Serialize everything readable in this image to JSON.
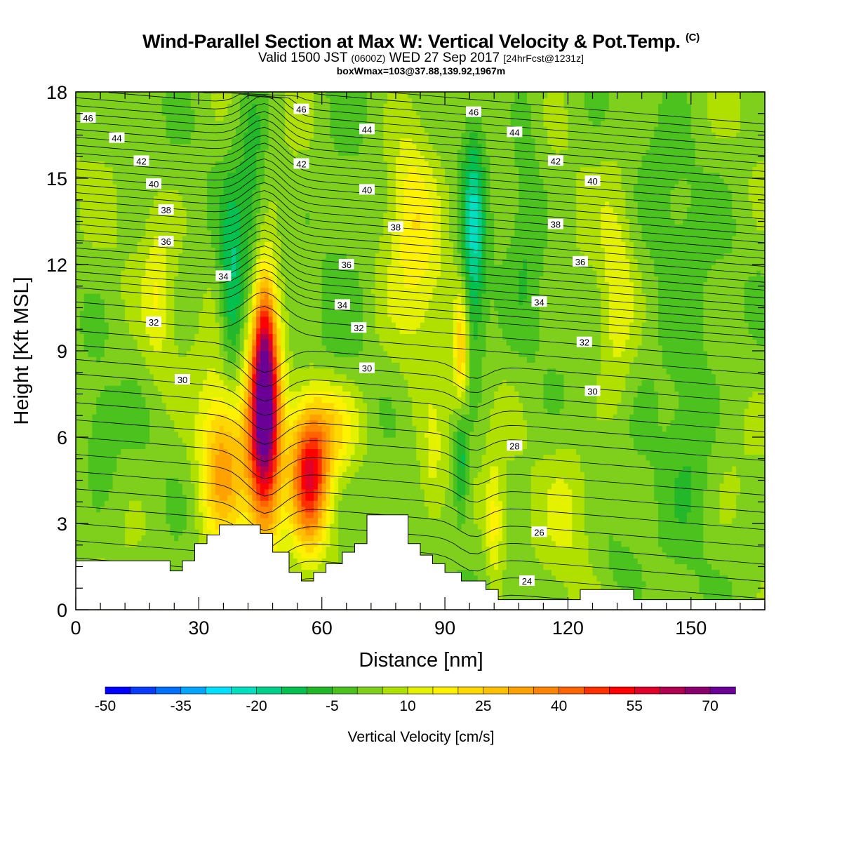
{
  "header": {
    "title": "Wind-Parallel Section at Max W: Vertical Velocity & Pot.Temp.",
    "copyright": "(C)",
    "valid_main": "Valid 1500 JST",
    "valid_utc": "(0600Z)",
    "valid_date": "WED 27 Sep 2017",
    "forecast": "[24hrFcst@1231z]",
    "boxinfo": "boxWmax=103@37.88,139.92,1967m"
  },
  "chart_data": {
    "type": "heatmap",
    "xlabel": "Distance [nm]",
    "ylabel": "Height [Kft MSL]",
    "xlim": [
      0,
      168
    ],
    "ylim": [
      0,
      18
    ],
    "xticks": [
      0,
      30,
      60,
      90,
      120,
      150
    ],
    "yticks": [
      0,
      3,
      6,
      9,
      12,
      15,
      18
    ],
    "colorbar": {
      "label": "Vertical Velocity [cm/s]",
      "tick_labels": [
        "-50",
        "-35",
        "-20",
        "-5",
        "10",
        "25",
        "40",
        "55",
        "70"
      ],
      "min": -50,
      "max": 75,
      "step": 5,
      "colors": [
        "#0000ff",
        "#0a3cff",
        "#0070ff",
        "#00a5ff",
        "#00e0ff",
        "#00e0c0",
        "#00d08a",
        "#00c050",
        "#22b82a",
        "#4cc21e",
        "#7fd01c",
        "#b0e000",
        "#e4f200",
        "#fff200",
        "#ffd800",
        "#ffc000",
        "#ffa200",
        "#ff8400",
        "#ff6400",
        "#ff3000",
        "#ff0000",
        "#e0002a",
        "#b20050",
        "#8a0070",
        "#6a0096"
      ]
    },
    "field": {
      "background": 3,
      "features": [
        {
          "x": 46,
          "z": 6.1,
          "sx": 2.8,
          "sz": 2.6,
          "a": 62
        },
        {
          "x": 46,
          "z": 9.4,
          "sx": 2.1,
          "sz": 2.0,
          "a": 38
        },
        {
          "x": 57,
          "z": 4.5,
          "sx": 3.2,
          "sz": 1.6,
          "a": 46
        },
        {
          "x": 62,
          "z": 6.3,
          "sx": 5.5,
          "sz": 1.3,
          "a": 22
        },
        {
          "x": 36,
          "z": 5.0,
          "sx": 4.0,
          "sz": 2.1,
          "a": 30
        },
        {
          "x": 38,
          "z": 11.0,
          "sx": 2.0,
          "sz": 2.5,
          "a": -18
        },
        {
          "x": 43,
          "z": 15.0,
          "sx": 2.5,
          "sz": 3.5,
          "a": -10
        },
        {
          "x": 65,
          "z": 12.0,
          "sx": 5.0,
          "sz": 6.0,
          "a": -5
        },
        {
          "x": 84,
          "z": 12.5,
          "sx": 5.0,
          "sz": 2.5,
          "a": 12
        },
        {
          "x": 81,
          "z": 15.0,
          "sx": 3.5,
          "sz": 2.0,
          "a": 8
        },
        {
          "x": 97,
          "z": 13.0,
          "sx": 2.0,
          "sz": 3.0,
          "a": -22
        },
        {
          "x": 94,
          "z": 9.0,
          "sx": 1.2,
          "sz": 1.5,
          "a": 22
        },
        {
          "x": 94,
          "z": 5.2,
          "sx": 1.2,
          "sz": 1.4,
          "a": -16
        },
        {
          "x": 102,
          "z": 3.0,
          "sx": 1.5,
          "sz": 1.5,
          "a": 14
        },
        {
          "x": 87,
          "z": 4.5,
          "sx": 2.5,
          "sz": 1.5,
          "a": 10
        },
        {
          "x": 20,
          "z": 11.0,
          "sx": 2.5,
          "sz": 2.0,
          "a": 10
        },
        {
          "x": 110,
          "z": 14.0,
          "sx": 3.0,
          "sz": 3.0,
          "a": -8
        },
        {
          "x": 132,
          "z": 11.0,
          "sx": 3.0,
          "sz": 3.0,
          "a": 10
        },
        {
          "x": 145,
          "z": 11.0,
          "sx": 7.0,
          "sz": 4.0,
          "a": -5
        },
        {
          "x": 150,
          "z": 6.0,
          "sx": 4.0,
          "sz": 2.5,
          "a": -7
        },
        {
          "x": 6,
          "z": 6.0,
          "sx": 3.0,
          "sz": 1.5,
          "a": -6
        },
        {
          "x": 132,
          "z": 1.5,
          "sx": 4.0,
          "sz": 1.0,
          "a": -5
        },
        {
          "x": 120,
          "z": 3.5,
          "sx": 4.0,
          "sz": 1.8,
          "a": 6
        }
      ]
    },
    "theta_labels": [
      {
        "text": "46",
        "x": 3,
        "z": 17.1
      },
      {
        "text": "44",
        "x": 10,
        "z": 16.4
      },
      {
        "text": "42",
        "x": 16,
        "z": 15.6
      },
      {
        "text": "40",
        "x": 19,
        "z": 14.8
      },
      {
        "text": "38",
        "x": 22,
        "z": 13.9
      },
      {
        "text": "36",
        "x": 22,
        "z": 12.8
      },
      {
        "text": "34",
        "x": 36,
        "z": 11.6
      },
      {
        "text": "32",
        "x": 19,
        "z": 10.0
      },
      {
        "text": "30",
        "x": 26,
        "z": 8.0
      },
      {
        "text": "46",
        "x": 55,
        "z": 17.4
      },
      {
        "text": "44",
        "x": 71,
        "z": 16.7
      },
      {
        "text": "42",
        "x": 55,
        "z": 15.5
      },
      {
        "text": "40",
        "x": 71,
        "z": 14.6
      },
      {
        "text": "38",
        "x": 78,
        "z": 13.3
      },
      {
        "text": "36",
        "x": 66,
        "z": 12.0
      },
      {
        "text": "34",
        "x": 65,
        "z": 10.6
      },
      {
        "text": "32",
        "x": 69,
        "z": 9.8
      },
      {
        "text": "30",
        "x": 71,
        "z": 8.4
      },
      {
        "text": "46",
        "x": 97,
        "z": 17.3
      },
      {
        "text": "44",
        "x": 107,
        "z": 16.6
      },
      {
        "text": "42",
        "x": 117,
        "z": 15.6
      },
      {
        "text": "40",
        "x": 126,
        "z": 14.9
      },
      {
        "text": "38",
        "x": 117,
        "z": 13.4
      },
      {
        "text": "36",
        "x": 123,
        "z": 12.1
      },
      {
        "text": "34",
        "x": 113,
        "z": 10.7
      },
      {
        "text": "32",
        "x": 124,
        "z": 9.3
      },
      {
        "text": "30",
        "x": 126,
        "z": 7.6
      },
      {
        "text": "28",
        "x": 107,
        "z": 5.7
      },
      {
        "text": "26",
        "x": 113,
        "z": 2.7
      },
      {
        "text": "24",
        "x": 110,
        "z": 1.0
      }
    ],
    "terrain": [
      [
        0,
        1.7
      ],
      [
        23,
        1.7
      ],
      [
        23,
        1.35
      ],
      [
        26,
        1.35
      ],
      [
        26,
        1.7
      ],
      [
        29,
        1.7
      ],
      [
        29,
        2.3
      ],
      [
        32,
        2.3
      ],
      [
        32,
        2.6
      ],
      [
        35,
        2.6
      ],
      [
        35,
        2.95
      ],
      [
        45,
        2.95
      ],
      [
        45,
        2.65
      ],
      [
        48,
        2.65
      ],
      [
        48,
        2.0
      ],
      [
        52,
        2.0
      ],
      [
        52,
        1.3
      ],
      [
        55,
        1.3
      ],
      [
        55,
        1.0
      ],
      [
        58,
        1.0
      ],
      [
        58,
        1.3
      ],
      [
        61,
        1.3
      ],
      [
        61,
        1.6
      ],
      [
        65,
        1.6
      ],
      [
        65,
        2.0
      ],
      [
        68,
        2.0
      ],
      [
        68,
        2.3
      ],
      [
        71,
        2.3
      ],
      [
        71,
        3.3
      ],
      [
        81,
        3.3
      ],
      [
        81,
        2.3
      ],
      [
        84,
        2.3
      ],
      [
        84,
        1.9
      ],
      [
        87,
        1.9
      ],
      [
        87,
        1.6
      ],
      [
        90,
        1.6
      ],
      [
        90,
        1.3
      ],
      [
        94,
        1.3
      ],
      [
        94,
        1.0
      ],
      [
        100,
        1.0
      ],
      [
        100,
        0.7
      ],
      [
        103,
        0.7
      ],
      [
        103,
        0.35
      ],
      [
        123,
        0.35
      ],
      [
        123,
        0.7
      ],
      [
        136,
        0.7
      ],
      [
        136,
        0.35
      ],
      [
        168,
        0.35
      ]
    ]
  }
}
